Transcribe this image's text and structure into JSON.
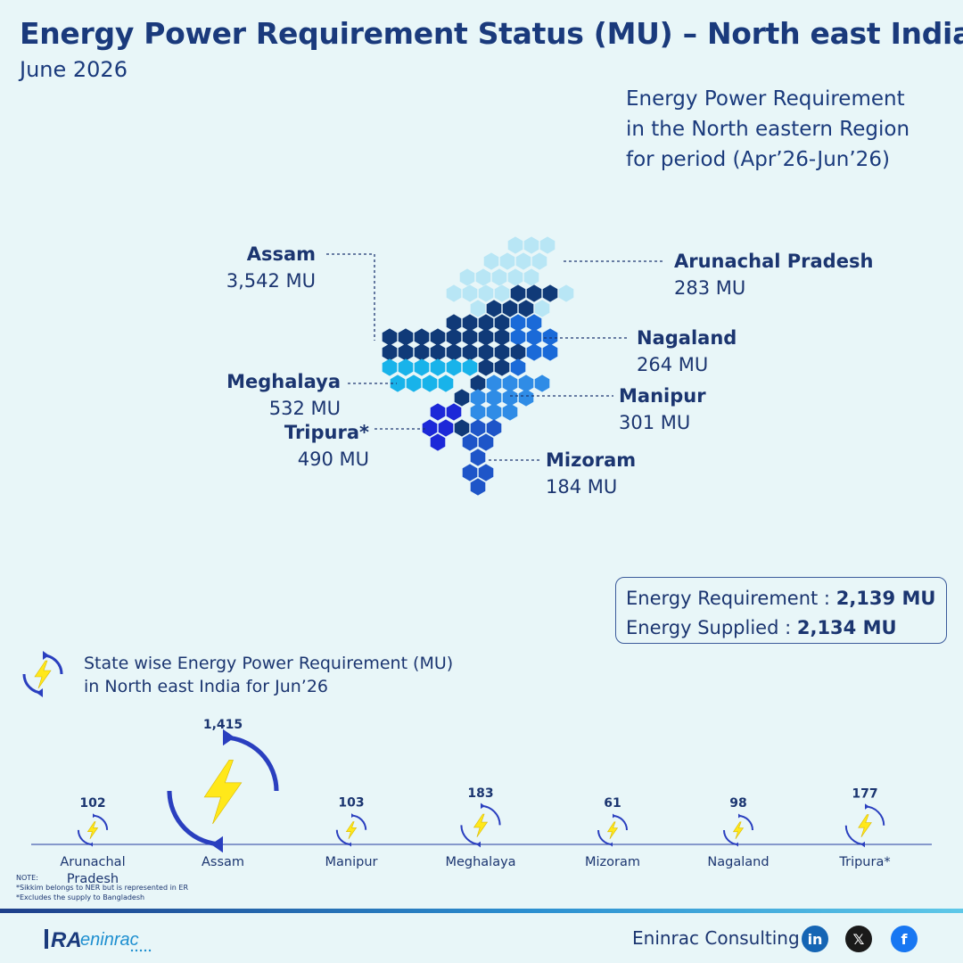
{
  "header": {
    "title": "Energy Power Requirement Status (MU) – North east India",
    "subtitle": "June 2026"
  },
  "region_caption": {
    "line1": "Energy Power Requirement",
    "line2": "in the North eastern Region",
    "line3": "for period (Apr’26-Jun’26)"
  },
  "map_labels": {
    "assam": {
      "name": "Assam",
      "value": "3,542 MU",
      "color": "#103a78"
    },
    "arunachal": {
      "name": "Arunachal Pradesh",
      "value": "283 MU",
      "color": "#b8e6f5"
    },
    "nagaland": {
      "name": "Nagaland",
      "value": "264 MU",
      "color": "#1a6ad8"
    },
    "meghalaya": {
      "name": "Meghalaya",
      "value": "532 MU",
      "color": "#18b3ea"
    },
    "manipur": {
      "name": "Manipur",
      "value": "301 MU",
      "color": "#2f8ce6"
    },
    "tripura": {
      "name": "Tripura*",
      "value": "490 MU",
      "color": "#1c28d8"
    },
    "mizoram": {
      "name": "Mizoram",
      "value": "184 MU",
      "color": "#1e55c8"
    }
  },
  "totals": {
    "req_label": "Energy Requirement :",
    "req_value": "2,139 MU",
    "sup_label": "Energy Supplied :",
    "sup_value": "2,134 MU"
  },
  "state_wise": {
    "line1": "State wise Energy Power Requirement (MU)",
    "line2": "in North east India for Jun’26"
  },
  "chart_data": {
    "type": "bubble",
    "title": "State wise Energy Power Requirement (MU) in North east India for Jun’26",
    "categories": [
      "Arunachal Pradesh",
      "Assam",
      "Manipur",
      "Meghalaya",
      "Mizoram",
      "Nagaland",
      "Tripura*"
    ],
    "values": [
      102,
      1415,
      103,
      183,
      61,
      98,
      177
    ],
    "value_labels": [
      "102",
      "1,415",
      "103",
      "183",
      "61",
      "98",
      "177"
    ],
    "unit": "MU"
  },
  "notes": {
    "header": "NOTE:",
    "line1": "*Sikkim belongs to NER but is represented in ER",
    "line2": "*Excludes the supply to Bangladesh"
  },
  "footer": {
    "brand": "Eninrac Consulting",
    "logo_text": "RA",
    "logo_word": "eninrac",
    "social": [
      "linkedin-icon",
      "x-icon",
      "facebook-icon"
    ]
  },
  "colors": {
    "title": "#1a3a7c",
    "accent_blue": "#2a3fbf",
    "bolt_yellow": "#ffe81a",
    "background": "#e8f6f8"
  }
}
